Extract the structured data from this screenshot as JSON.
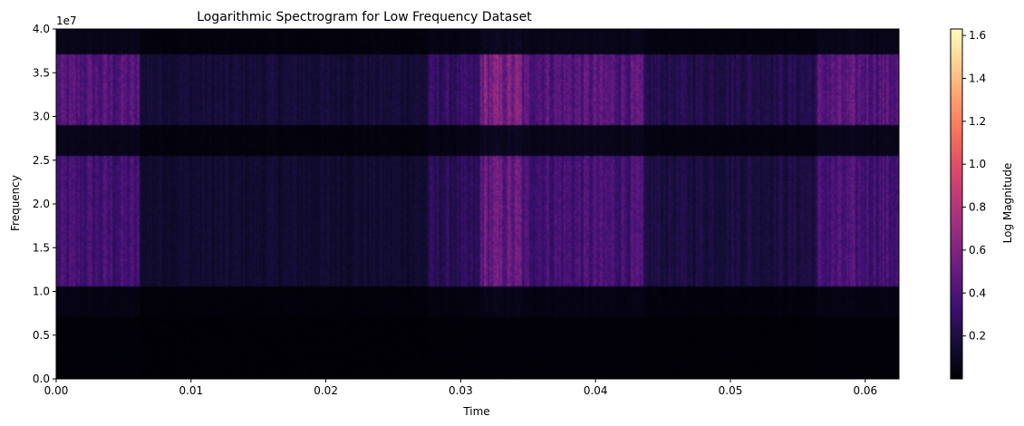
{
  "chart_data": {
    "type": "heatmap",
    "title": "Logarithmic Spectrogram for Low Frequency Dataset",
    "xlabel": "Time",
    "ylabel": "Frequency",
    "y_scale_label": "1e7",
    "colorbar_label": "Log Magnitude",
    "colormap": "magma",
    "xlim": [
      0.0,
      0.0625
    ],
    "ylim": [
      0.0,
      40000000
    ],
    "color_range": [
      0.0,
      1.63
    ],
    "x_ticks": [
      0.0,
      0.01,
      0.02,
      0.03,
      0.04,
      0.05,
      0.06
    ],
    "x_tick_labels": [
      "0.00",
      "0.01",
      "0.02",
      "0.03",
      "0.04",
      "0.05",
      "0.06"
    ],
    "y_ticks": [
      0,
      5000000,
      10000000,
      15000000,
      20000000,
      25000000,
      30000000,
      35000000,
      40000000
    ],
    "y_tick_labels": [
      "0.0",
      "0.5",
      "1.0",
      "1.5",
      "2.0",
      "2.5",
      "3.0",
      "3.5",
      "4.0"
    ],
    "colorbar_ticks": [
      0.2,
      0.4,
      0.6,
      0.8,
      1.0,
      1.2,
      1.4,
      1.6
    ],
    "colorbar_tick_labels": [
      "0.2",
      "0.4",
      "0.6",
      "0.8",
      "1.0",
      "1.2",
      "1.4",
      "1.6"
    ],
    "time_segments": [
      {
        "t_start": 0.0,
        "t_end": 0.0062,
        "level": 0.4
      },
      {
        "t_start": 0.0062,
        "t_end": 0.0275,
        "level": 0.16
      },
      {
        "t_start": 0.0275,
        "t_end": 0.0315,
        "level": 0.28
      },
      {
        "t_start": 0.0315,
        "t_end": 0.0345,
        "level": 0.55
      },
      {
        "t_start": 0.0345,
        "t_end": 0.0435,
        "level": 0.42
      },
      {
        "t_start": 0.0435,
        "t_end": 0.0565,
        "level": 0.22
      },
      {
        "t_start": 0.0565,
        "t_end": 0.0625,
        "level": 0.42
      }
    ],
    "frequency_bands": [
      {
        "f_start": 0,
        "f_end": 7000000,
        "level": 0.02
      },
      {
        "f_start": 7000000,
        "f_end": 10500000,
        "level": 0.1
      },
      {
        "f_start": 10500000,
        "f_end": 25500000,
        "level": 0.85
      },
      {
        "f_start": 25500000,
        "f_end": 29000000,
        "level": 0.15
      },
      {
        "f_start": 29000000,
        "f_end": 37000000,
        "level": 1.0
      },
      {
        "f_start": 37000000,
        "f_end": 40000000,
        "level": 0.15
      }
    ]
  }
}
